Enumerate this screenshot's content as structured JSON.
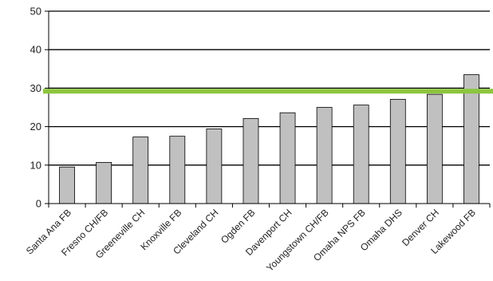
{
  "chart_data": {
    "type": "bar",
    "title": "",
    "xlabel": "",
    "ylabel": "",
    "categories": [
      "Santa Ana FB",
      "Fresno CH/FB",
      "Greeneville CH",
      "Knoxville FB",
      "Cleveland CH",
      "Ogden FB",
      "Davenport CH",
      "Youngstown CH/FB",
      "Omaha NPS FB",
      "Omaha DHS",
      "Denver CH",
      "Lakewood FB"
    ],
    "values": [
      9.5,
      10.7,
      17.3,
      17.5,
      19.4,
      22.1,
      23.6,
      25.0,
      25.6,
      27.1,
      28.4,
      33.5
    ],
    "ylim": [
      0,
      50
    ],
    "yticks": [
      0,
      10,
      20,
      30,
      40,
      50
    ],
    "grid": true,
    "reference_line": {
      "value": 29.2,
      "color": "#8cc63f"
    },
    "colors": {
      "bar_fill": "#c0c0c0",
      "bar_stroke": "#000000",
      "gridline": "#000000"
    }
  }
}
